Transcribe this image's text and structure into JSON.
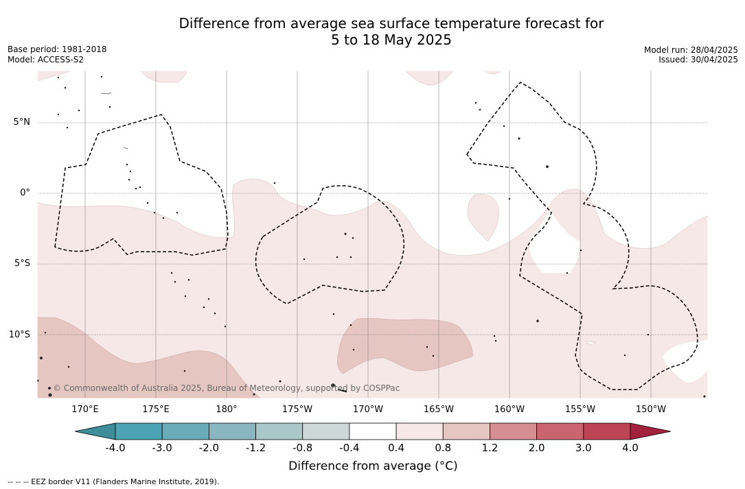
{
  "title_line1": "Difference from average sea surface temperature forecast for",
  "title_line2": "5 to 18 May 2025",
  "meta_left": [
    "Base period: 1981-2018",
    "Model: ACCESS-S2"
  ],
  "meta_right": [
    "Model run: 28/04/2025",
    "Issued: 30/04/2025"
  ],
  "lat_labels": [
    "5°N",
    "0°",
    "5°S",
    "10°S"
  ],
  "lon_labels": [
    "170°E",
    "175°E",
    "180°",
    "175°W",
    "170°W",
    "165°W",
    "160°W",
    "155°W",
    "150°W"
  ],
  "copyright": "© Commonwealth of Australia 2025, Bureau of Meteorology, supported by COSPPac",
  "colorbar": {
    "ticks": [
      "-4.0",
      "-3.0",
      "-2.0",
      "-1.2",
      "-0.8",
      "-0.4",
      "0.4",
      "0.8",
      "1.2",
      "2.0",
      "3.0",
      "4.0"
    ],
    "colors": [
      "#3e8d99",
      "#4ba3b3",
      "#6aabb9",
      "#89b6c0",
      "#aac7ca",
      "#ccd8d8",
      "#ffffff",
      "#f5e8e6",
      "#e6c6c1",
      "#d68e95",
      "#c96470",
      "#bd4455",
      "#a3213c"
    ],
    "title": "Difference from average (°C)"
  },
  "footnote": "--  --  -- EEZ border V11 (Flanders Marine Institute, 2019)."
}
